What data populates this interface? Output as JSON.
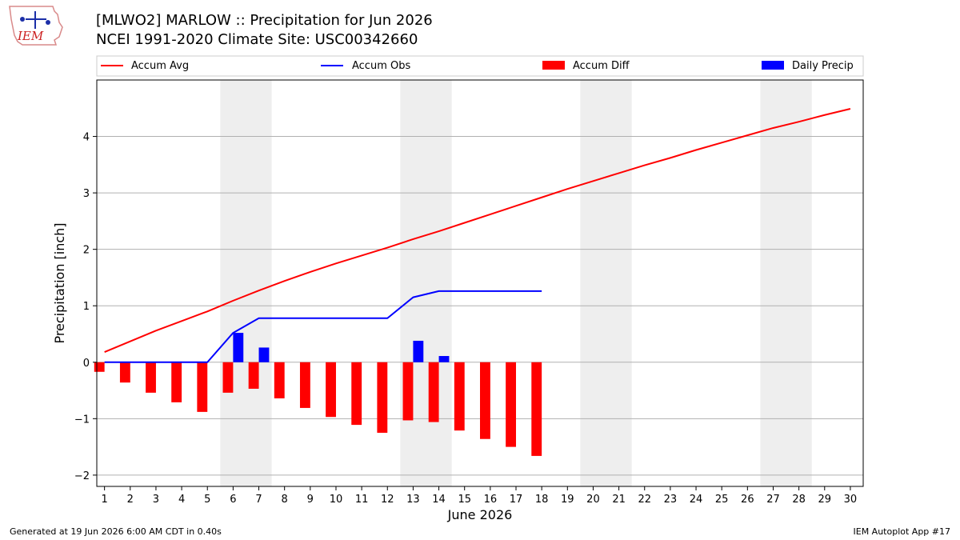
{
  "header": {
    "title_line1": "[MLWO2] MARLOW :: Precipitation for Jun 2026",
    "title_line2": "NCEI 1991-2020 Climate Site: USC00342660"
  },
  "logo": {
    "text": "IEM",
    "icon": "iem-iowa-map-logo-icon"
  },
  "legend": {
    "placement": "top",
    "items": [
      {
        "label": "Accum Avg",
        "kind": "line",
        "color": "#ff0000"
      },
      {
        "label": "Accum Obs",
        "kind": "line",
        "color": "#0000ff"
      },
      {
        "label": "Accum Diff",
        "kind": "bar",
        "color": "#ff0000"
      },
      {
        "label": "Daily Precip",
        "kind": "bar",
        "color": "#0000ff"
      }
    ]
  },
  "footer": {
    "left": "Generated at 19 Jun 2026 6:00 AM CDT in 0.40s",
    "right": "IEM Autoplot App #17"
  },
  "chart_data": {
    "type": "bar",
    "title": "[MLWO2] MARLOW :: Precipitation for Jun 2026",
    "subtitle": "NCEI 1991-2020 Climate Site: USC00342660",
    "xlabel": "June 2026",
    "ylabel": "Precipitation [inch]",
    "ylim": [
      -2.2,
      5.0
    ],
    "yticks": [
      -2,
      -1,
      0,
      1,
      2,
      3,
      4
    ],
    "ytick_labels": [
      "−2",
      "−1",
      "0",
      "1",
      "2",
      "3",
      "4"
    ],
    "xlim": [
      0.7,
      30.5
    ],
    "x": [
      1,
      2,
      3,
      4,
      5,
      6,
      7,
      8,
      9,
      10,
      11,
      12,
      13,
      14,
      15,
      16,
      17,
      18,
      19,
      20,
      21,
      22,
      23,
      24,
      25,
      26,
      27,
      28,
      29,
      30
    ],
    "xtick_labels": [
      "1",
      "2",
      "3",
      "4",
      "5",
      "6",
      "7",
      "8",
      "9",
      "10",
      "11",
      "12",
      "13",
      "14",
      "15",
      "16",
      "17",
      "18",
      "19",
      "20",
      "21",
      "22",
      "23",
      "24",
      "25",
      "26",
      "27",
      "28",
      "29",
      "30"
    ],
    "grid": "horizontal",
    "weekend_shading": [
      [
        6,
        7
      ],
      [
        13,
        14
      ],
      [
        20,
        21
      ],
      [
        27,
        28
      ]
    ],
    "series": [
      {
        "name": "Accum Avg",
        "kind": "line",
        "color": "#ff0000",
        "x": [
          1,
          2,
          3,
          4,
          5,
          6,
          7,
          8,
          9,
          10,
          11,
          12,
          13,
          14,
          15,
          16,
          17,
          18,
          19,
          20,
          21,
          22,
          23,
          24,
          25,
          26,
          27,
          28,
          29,
          30
        ],
        "values": [
          0.18,
          0.37,
          0.56,
          0.73,
          0.9,
          1.09,
          1.27,
          1.44,
          1.6,
          1.75,
          1.89,
          2.03,
          2.18,
          2.32,
          2.47,
          2.62,
          2.77,
          2.92,
          3.07,
          3.21,
          3.35,
          3.49,
          3.62,
          3.76,
          3.89,
          4.02,
          4.15,
          4.26,
          4.38,
          4.49
        ]
      },
      {
        "name": "Accum Obs",
        "kind": "line",
        "color": "#0000ff",
        "x": [
          1,
          2,
          3,
          4,
          5,
          6,
          7,
          8,
          9,
          10,
          11,
          12,
          13,
          14,
          15,
          16,
          17,
          18
        ],
        "values": [
          0.0,
          0.0,
          0.0,
          0.0,
          0.0,
          0.52,
          0.78,
          0.78,
          0.78,
          0.78,
          0.78,
          0.78,
          1.15,
          1.26,
          1.26,
          1.26,
          1.26,
          1.26
        ]
      },
      {
        "name": "Accum Diff",
        "kind": "bar",
        "color": "#ff0000",
        "offset": -0.2,
        "x": [
          1,
          2,
          3,
          4,
          5,
          6,
          7,
          8,
          9,
          10,
          11,
          12,
          13,
          14,
          15,
          16,
          17,
          18
        ],
        "values": [
          -0.17,
          -0.36,
          -0.54,
          -0.71,
          -0.88,
          -0.54,
          -0.47,
          -0.64,
          -0.81,
          -0.97,
          -1.11,
          -1.25,
          -1.03,
          -1.06,
          -1.21,
          -1.36,
          -1.5,
          -1.66
        ]
      },
      {
        "name": "Daily Precip",
        "kind": "bar",
        "color": "#0000ff",
        "offset": 0.2,
        "x": [
          6,
          7,
          13,
          14
        ],
        "values": [
          0.52,
          0.26,
          0.38,
          0.11
        ]
      }
    ]
  }
}
